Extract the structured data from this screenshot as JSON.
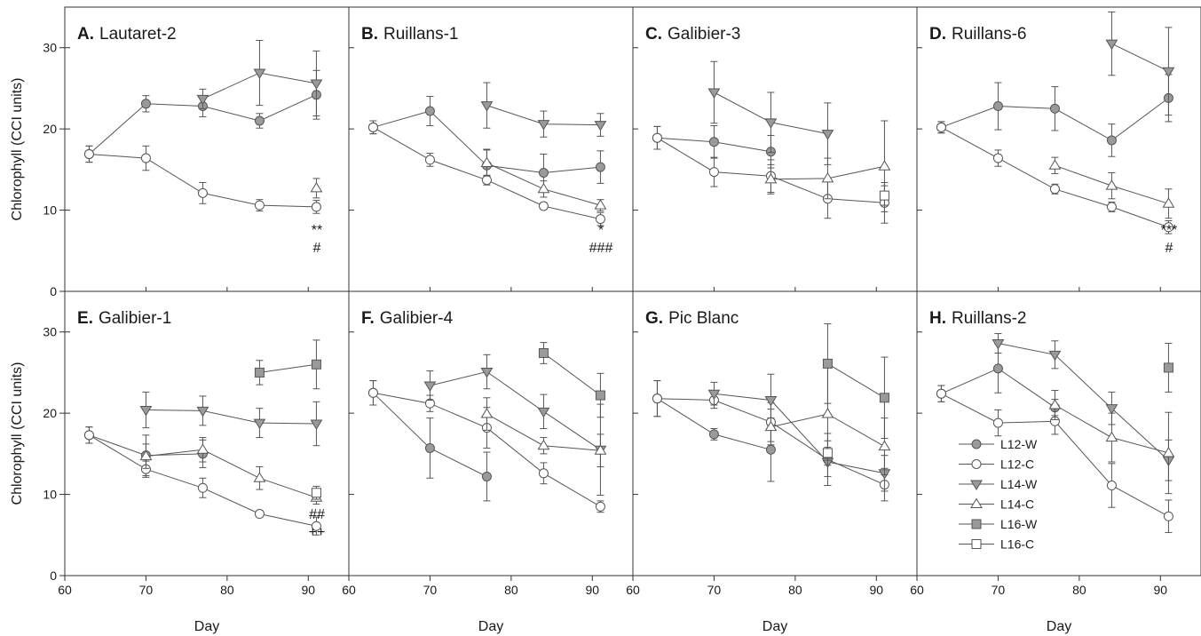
{
  "figure": {
    "ylabel": "Chlorophyll (CCI units)",
    "xlabel": "Day"
  },
  "legend": [
    {
      "key": "L12W",
      "label": "L12-W"
    },
    {
      "key": "L12C",
      "label": "L12-C"
    },
    {
      "key": "L14W",
      "label": "L14-W"
    },
    {
      "key": "L14C",
      "label": "L14-C"
    },
    {
      "key": "L16W",
      "label": "L16-W"
    },
    {
      "key": "L16C",
      "label": "L16-C"
    }
  ],
  "styles": {
    "L12W": {
      "marker": "circle",
      "fill": "#9a9a9a"
    },
    "L12C": {
      "marker": "circle",
      "fill": "#ffffff"
    },
    "L14W": {
      "marker": "triangle-down",
      "fill": "#9a9a9a"
    },
    "L14C": {
      "marker": "triangle-up",
      "fill": "#ffffff"
    },
    "L16W": {
      "marker": "square",
      "fill": "#9a9a9a"
    },
    "L16C": {
      "marker": "square",
      "fill": "#ffffff"
    }
  },
  "axes": {
    "xlim": [
      60,
      95
    ],
    "ylim": [
      0,
      35
    ],
    "xticks": [
      60,
      70,
      80,
      90
    ],
    "yticks": [
      0,
      10,
      20,
      30
    ],
    "grid": false
  },
  "chart_data": [
    {
      "type": "line",
      "letter": "A.",
      "name": "Lautaret-2",
      "series": [
        {
          "key": "L12W",
          "points": [
            [
              63,
              16.9,
              1.0
            ],
            [
              70,
              23.1,
              1.0
            ],
            [
              77,
              22.8,
              1.3
            ],
            [
              84,
              21.0,
              0.9
            ],
            [
              91,
              24.2,
              3.0
            ]
          ]
        },
        {
          "key": "L12C",
          "points": [
            [
              63,
              16.9,
              1.0
            ],
            [
              70,
              16.4,
              1.5
            ],
            [
              77,
              12.1,
              1.3
            ],
            [
              84,
              10.6,
              0.7
            ],
            [
              91,
              10.4,
              0.8
            ]
          ]
        },
        {
          "key": "L14W",
          "points": [
            [
              77,
              23.7,
              1.2
            ],
            [
              84,
              26.9,
              4.0
            ],
            [
              91,
              25.6,
              4.0
            ]
          ]
        },
        {
          "key": "L14C",
          "points": [
            [
              91,
              12.7,
              1.2
            ]
          ]
        }
      ],
      "annotations": [
        "**",
        "#"
      ]
    },
    {
      "type": "line",
      "letter": "B.",
      "name": "Ruillans-1",
      "series": [
        {
          "key": "L12W",
          "points": [
            [
              63,
              20.2,
              0.8
            ],
            [
              70,
              22.2,
              1.8
            ],
            [
              77,
              15.5,
              2.0
            ],
            [
              84,
              14.6,
              2.3
            ],
            [
              91,
              15.3,
              2.0
            ]
          ]
        },
        {
          "key": "L12C",
          "points": [
            [
              63,
              20.2,
              0.8
            ],
            [
              70,
              16.2,
              0.8
            ],
            [
              77,
              13.7,
              0.6
            ],
            [
              84,
              10.5,
              0.4
            ],
            [
              91,
              8.9,
              0.8
            ]
          ]
        },
        {
          "key": "L14W",
          "points": [
            [
              77,
              22.9,
              2.8
            ],
            [
              84,
              20.6,
              1.6
            ],
            [
              91,
              20.5,
              1.4
            ]
          ]
        },
        {
          "key": "L14C",
          "points": [
            [
              77,
              15.8,
              1.6
            ],
            [
              84,
              12.6,
              1.0
            ],
            [
              91,
              10.6,
              0.7
            ]
          ]
        }
      ],
      "annotations": [
        "*",
        "###"
      ]
    },
    {
      "type": "line",
      "letter": "C.",
      "name": "Galibier-3",
      "series": [
        {
          "key": "L12W",
          "points": [
            [
              63,
              18.9,
              1.4
            ],
            [
              70,
              18.4,
              2.0
            ],
            [
              77,
              17.2,
              2.0
            ]
          ]
        },
        {
          "key": "L12C",
          "points": [
            [
              63,
              18.9,
              1.4
            ],
            [
              70,
              14.7,
              1.8
            ],
            [
              77,
              14.2,
              2.0
            ],
            [
              84,
              11.4,
              2.4
            ],
            [
              91,
              10.9,
              2.5
            ]
          ]
        },
        {
          "key": "L14W",
          "points": [
            [
              70,
              24.5,
              3.8
            ],
            [
              77,
              20.8,
              3.7
            ],
            [
              84,
              19.4,
              3.8
            ]
          ]
        },
        {
          "key": "L14C",
          "points": [
            [
              77,
              13.8,
              1.8
            ],
            [
              84,
              13.9,
              2.5
            ],
            [
              91,
              15.4,
              5.6
            ]
          ]
        },
        {
          "key": "L16C",
          "points": [
            [
              91,
              11.8,
              1.2
            ]
          ]
        }
      ],
      "annotations": []
    },
    {
      "type": "line",
      "letter": "D.",
      "name": "Ruillans-6",
      "series": [
        {
          "key": "L12W",
          "points": [
            [
              63,
              20.2,
              0.7
            ],
            [
              70,
              22.8,
              2.9
            ],
            [
              77,
              22.5,
              2.7
            ],
            [
              84,
              18.6,
              2.0
            ],
            [
              91,
              23.8,
              2.9
            ]
          ]
        },
        {
          "key": "L12C",
          "points": [
            [
              63,
              20.2,
              0.7
            ],
            [
              70,
              16.4,
              1.0
            ],
            [
              77,
              12.6,
              0.6
            ],
            [
              84,
              10.4,
              0.6
            ],
            [
              91,
              7.9,
              0.8
            ]
          ]
        },
        {
          "key": "L14W",
          "points": [
            [
              84,
              30.5,
              3.9
            ],
            [
              91,
              27.1,
              5.4
            ]
          ]
        },
        {
          "key": "L14C",
          "points": [
            [
              77,
              15.5,
              1.0
            ],
            [
              84,
              13.0,
              1.6
            ],
            [
              91,
              10.8,
              1.8
            ]
          ]
        }
      ],
      "annotations": [
        "***",
        "#"
      ]
    },
    {
      "type": "line",
      "letter": "E.",
      "name": "Galibier-1",
      "series": [
        {
          "key": "L12W",
          "points": [
            [
              63,
              17.3,
              1.0
            ],
            [
              70,
              14.8,
              2.5
            ],
            [
              77,
              15.0,
              1.7
            ]
          ]
        },
        {
          "key": "L12C",
          "points": [
            [
              63,
              17.3,
              1.0
            ],
            [
              70,
              13.1,
              1.0
            ],
            [
              77,
              10.8,
              1.2
            ],
            [
              84,
              7.6,
              0.4
            ],
            [
              91,
              6.1,
              1.1
            ]
          ]
        },
        {
          "key": "L14W",
          "points": [
            [
              70,
              20.4,
              2.2
            ],
            [
              77,
              20.3,
              1.8
            ],
            [
              84,
              18.8,
              1.8
            ],
            [
              91,
              18.7,
              2.7
            ]
          ]
        },
        {
          "key": "L14C",
          "points": [
            [
              70,
              14.7,
              1.5
            ],
            [
              77,
              15.5,
              1.5
            ],
            [
              84,
              12.0,
              1.4
            ],
            [
              91,
              9.6,
              0.8
            ]
          ]
        },
        {
          "key": "L16W",
          "points": [
            [
              84,
              25.0,
              1.5
            ],
            [
              91,
              26.0,
              3.0
            ]
          ]
        },
        {
          "key": "L16C",
          "points": [
            [
              91,
              10.2,
              0.8
            ]
          ]
        }
      ],
      "annotations": [
        "##",
        "++"
      ]
    },
    {
      "type": "line",
      "letter": "F.",
      "name": "Galibier-4",
      "series": [
        {
          "key": "L12W",
          "points": [
            [
              63,
              22.5,
              1.5
            ],
            [
              70,
              15.7,
              3.7
            ],
            [
              77,
              12.2,
              3.0
            ]
          ]
        },
        {
          "key": "L12C",
          "points": [
            [
              63,
              22.5,
              1.5
            ],
            [
              70,
              21.2,
              1.0
            ],
            [
              77,
              18.2,
              2.5
            ],
            [
              84,
              12.6,
              1.3
            ],
            [
              91,
              8.5,
              0.7
            ]
          ]
        },
        {
          "key": "L14W",
          "points": [
            [
              70,
              23.4,
              1.8
            ],
            [
              77,
              25.1,
              2.1
            ],
            [
              84,
              20.2,
              2.1
            ],
            [
              91,
              15.5,
              5.6
            ]
          ]
        },
        {
          "key": "L14C",
          "points": [
            [
              77,
              19.9,
              2.0
            ],
            [
              84,
              16.0,
              1.0
            ],
            [
              91,
              15.4,
              2.0
            ]
          ]
        },
        {
          "key": "L16W",
          "points": [
            [
              84,
              27.4,
              1.3
            ],
            [
              91,
              22.2,
              2.7
            ]
          ]
        }
      ],
      "annotations": []
    },
    {
      "type": "line",
      "letter": "G.",
      "name": "Pic Blanc",
      "series": [
        {
          "key": "L12W",
          "points": [
            [
              63,
              21.8,
              2.2
            ],
            [
              70,
              17.4,
              0.7
            ],
            [
              77,
              15.5,
              3.9
            ]
          ]
        },
        {
          "key": "L12C",
          "points": [
            [
              63,
              21.8,
              2.2
            ],
            [
              70,
              21.6,
              1.0
            ],
            [
              77,
              18.9,
              2.4
            ],
            [
              84,
              14.3,
              3.2
            ],
            [
              91,
              11.2,
              2.0
            ]
          ]
        },
        {
          "key": "L14W",
          "points": [
            [
              70,
              22.4,
              1.4
            ],
            [
              77,
              21.6,
              3.2
            ],
            [
              84,
              14.0,
              1.8
            ],
            [
              91,
              12.6,
              2.2
            ]
          ]
        },
        {
          "key": "L14C",
          "points": [
            [
              77,
              18.3,
              2.2
            ],
            [
              84,
              19.9,
              5.7
            ],
            [
              91,
              15.9,
              3.5
            ]
          ]
        },
        {
          "key": "L16W",
          "points": [
            [
              84,
              26.1,
              4.9
            ],
            [
              91,
              21.9,
              5.0
            ]
          ]
        },
        {
          "key": "L16C",
          "points": [
            [
              84,
              15.1,
              1.5
            ]
          ]
        }
      ],
      "annotations": []
    },
    {
      "type": "line",
      "letter": "H.",
      "name": "Ruillans-2",
      "series": [
        {
          "key": "L12W",
          "points": [
            [
              63,
              22.4,
              1.0
            ],
            [
              70,
              25.5,
              3.0
            ],
            [
              77,
              20.7,
              1.0
            ]
          ]
        },
        {
          "key": "L12C",
          "points": [
            [
              63,
              22.4,
              1.0
            ],
            [
              70,
              18.8,
              1.6
            ],
            [
              77,
              19.0,
              1.6
            ],
            [
              84,
              11.1,
              2.7
            ],
            [
              91,
              7.3,
              2.0
            ]
          ]
        },
        {
          "key": "L14W",
          "points": [
            [
              70,
              28.6,
              1.2
            ],
            [
              77,
              27.2,
              1.7
            ],
            [
              84,
              20.6,
              2.0
            ],
            [
              91,
              14.2,
              2.5
            ]
          ]
        },
        {
          "key": "L14C",
          "points": [
            [
              77,
              21.0,
              1.8
            ],
            [
              84,
              17.0,
              3.0
            ],
            [
              91,
              15.1,
              5.0
            ]
          ]
        },
        {
          "key": "L16W",
          "points": [
            [
              91,
              25.6,
              3.0
            ]
          ]
        }
      ],
      "annotations": []
    }
  ]
}
